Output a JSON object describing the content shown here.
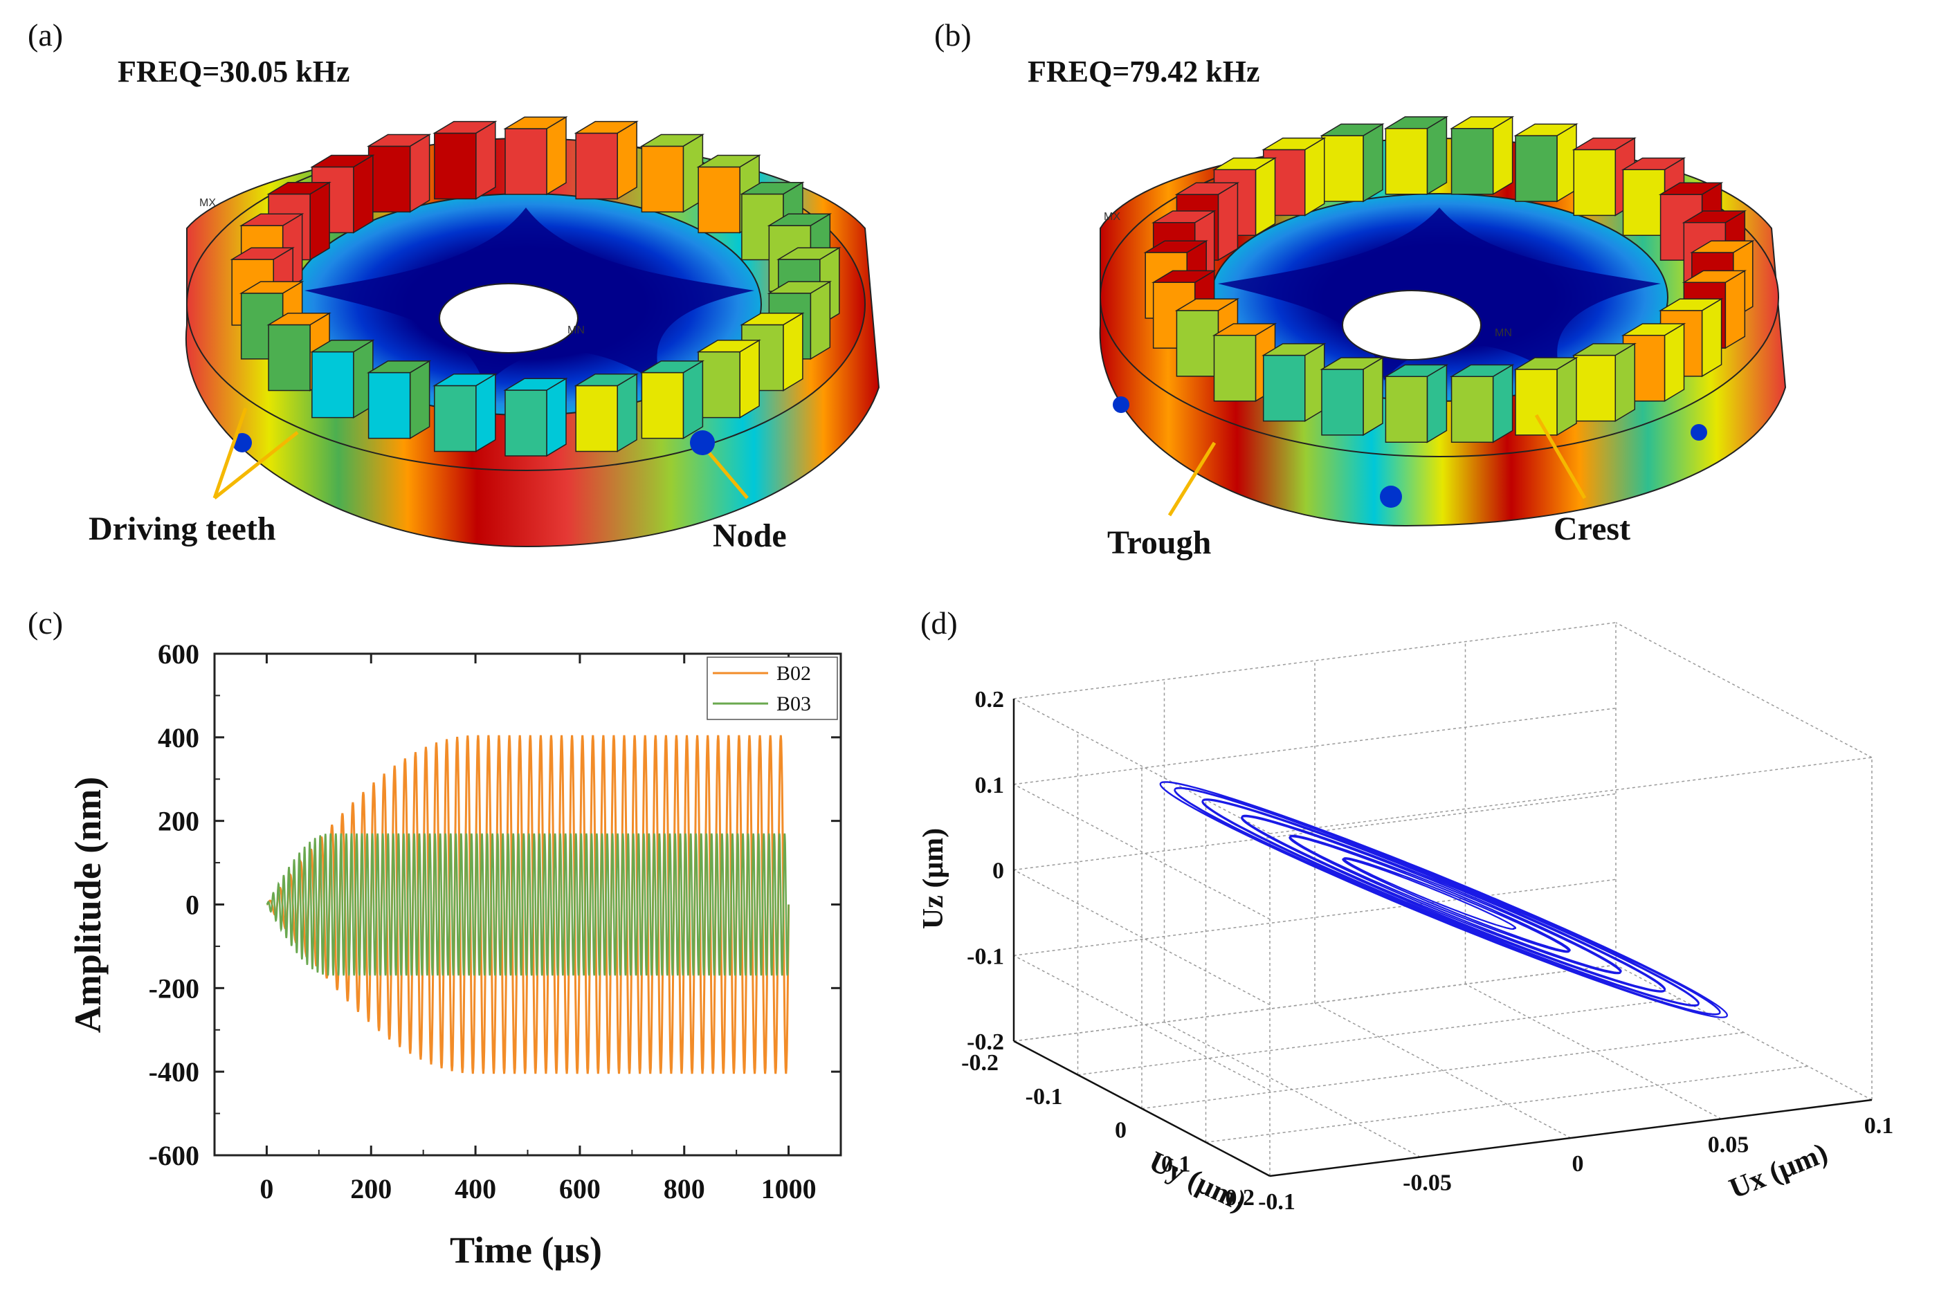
{
  "panels": {
    "a": {
      "label": "(a)",
      "freq": "FREQ=30.05 kHz",
      "annotations": {
        "teeth": "Driving teeth",
        "node": "Node"
      },
      "marks": {
        "mx": "MX",
        "mn": "MN"
      }
    },
    "b": {
      "label": "(b)",
      "freq": "FREQ=79.42 kHz",
      "annotations": {
        "trough": "Trough",
        "crest": "Crest"
      },
      "marks": {
        "mx": "MX",
        "mn": "MN"
      }
    },
    "c": {
      "label": "(c)"
    },
    "d": {
      "label": "(d)"
    }
  },
  "colors": {
    "b02": "#f28c28",
    "b03": "#6aa84f",
    "orbit": "#1a1ae6",
    "arrow": "#f5b800",
    "contour": [
      "#00008b",
      "#0033cc",
      "#1e88e5",
      "#00c8d8",
      "#2fbf8f",
      "#4caf50",
      "#9acd32",
      "#e6e600",
      "#ff9900",
      "#e53935",
      "#c00000"
    ]
  },
  "chart_data": [
    {
      "id": "c",
      "type": "line",
      "xlabel": "Time (μs)",
      "ylabel": "Amplitude (nm)",
      "xlim": [
        -100,
        1100
      ],
      "ylim": [
        -600,
        600
      ],
      "xticks": [
        0,
        200,
        400,
        600,
        800,
        1000
      ],
      "yticks": [
        -600,
        -400,
        -200,
        0,
        200,
        400,
        600
      ],
      "xtick_labels": [
        "0",
        "200",
        "400",
        "600",
        "800",
        "1000"
      ],
      "ytick_labels": [
        "-600",
        "-400",
        "-200",
        "0",
        "200",
        "400",
        "600"
      ],
      "legend": {
        "position": "top-right",
        "entries": [
          "B02",
          "B03"
        ]
      },
      "series": [
        {
          "name": "B02",
          "steady_amplitude": 405,
          "rise_time": 400,
          "cycles": 50,
          "t_start": 0,
          "t_end": 1000
        },
        {
          "name": "B03",
          "steady_amplitude": 170,
          "rise_time": 120,
          "cycles": 100,
          "t_start": 0,
          "t_end": 1000
        }
      ]
    },
    {
      "id": "d",
      "type": "line3d",
      "xlabel": "Ux (μm)",
      "ylabel": "Uy (μm)",
      "zlabel": "Uz (μm)",
      "xlim": [
        -0.1,
        0.1
      ],
      "ylim": [
        -0.2,
        0.2
      ],
      "zlim": [
        -0.2,
        0.2
      ],
      "xtick_labels": [
        "-0.1",
        "-0.05",
        "0",
        "0.05",
        "0.1"
      ],
      "ytick_labels": [
        "-0.2",
        "-0.1",
        "0",
        "0.1",
        "0.2"
      ],
      "ztick_labels": [
        "-0.2",
        "-0.1",
        "0",
        "0.1",
        "0.2"
      ],
      "orbit": {
        "shape": "tilted elliptical spiral",
        "max_ux": 0.06,
        "max_uy": 0.18,
        "max_uz": 0.1,
        "loops": 18
      },
      "grid": true
    }
  ]
}
